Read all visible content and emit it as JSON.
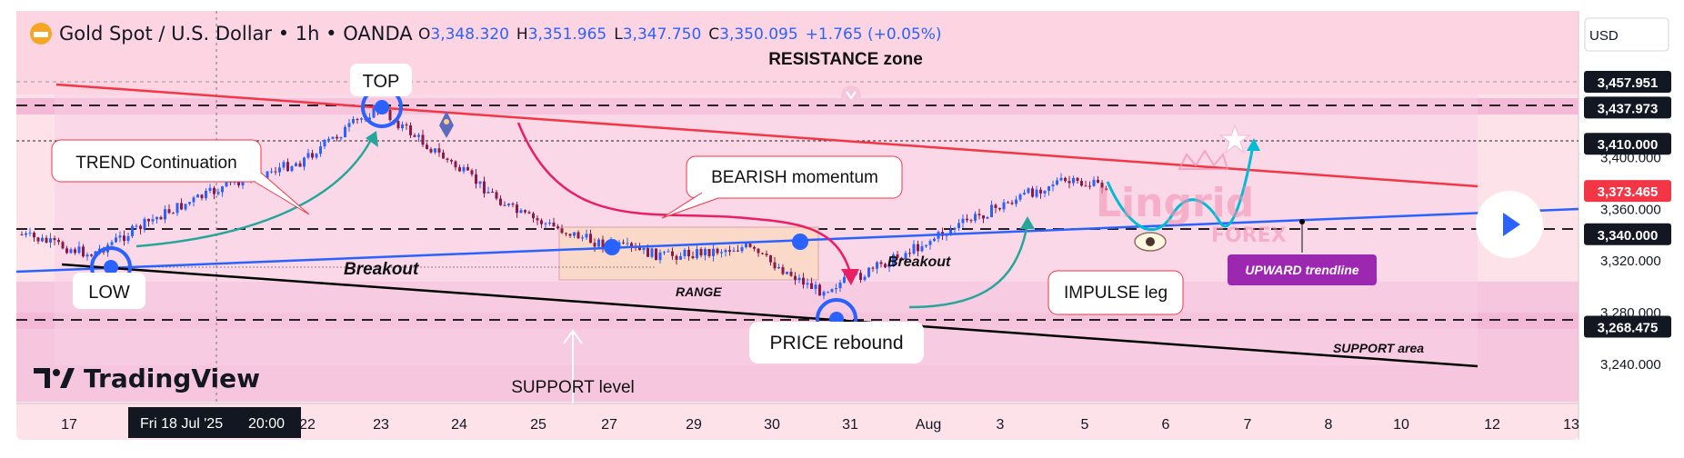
{
  "header": {
    "symbol": "Gold Spot / U.S. Dollar",
    "interval": "1h",
    "broker": "OANDA",
    "o_label": "O",
    "o": "3,348.320",
    "h_label": "H",
    "h": "3,351.965",
    "l_label": "L",
    "l": "3,347.750",
    "c_label": "C",
    "c": "3,350.095",
    "change": "+1.765 (+0.05%)"
  },
  "currency_label": "USD",
  "branding": {
    "tradingview": "TradingView",
    "watermark_top": "Lingrid",
    "watermark_bottom": "FOREX"
  },
  "colors": {
    "background": "#fde2ea",
    "pink_band": "#f3b9d6",
    "resistance_line": "#f23645",
    "trendline_blue": "#2962ff",
    "support_line": "#000000",
    "candle_up": "#2962ff",
    "candle_down": "#8b1a4a",
    "bearish_curve": "#e91e63",
    "green_arrow": "#26a69a",
    "cyan_projection": "#00bcd4",
    "last_price_tag": "#f23645",
    "trendline_label_bg": "#9c27b0"
  },
  "annotations": {
    "top": "TOP",
    "low": "LOW",
    "resistance_zone": "RESISTANCE zone",
    "trend_continuation": "TREND Continuation",
    "bearish_momentum": "BEARISH momentum",
    "breakout_left": "Breakout",
    "breakout_right": "Breakout",
    "range": "RANGE",
    "impulse_leg": "IMPULSE leg",
    "price_rebound": "PRICE rebound",
    "support_level": "SUPPORT level",
    "support_area": "SUPPORT area",
    "upward_trendline": "UPWARD trendline"
  },
  "crosshair_date": "Fri 18 Jul '25",
  "crosshair_time": "20:00",
  "chart_data": {
    "type": "candlestick",
    "symbol": "XAUUSD",
    "timeframe": "1h",
    "x_ticks": [
      "17",
      "22",
      "23",
      "24",
      "25",
      "27",
      "29",
      "30",
      "31",
      "Aug",
      "3",
      "5",
      "6",
      "7",
      "8",
      "10",
      "12",
      "13"
    ],
    "y_ticks": [
      "3,240.000",
      "3,280.000",
      "3,320.000",
      "3,360.000",
      "3,400.000"
    ],
    "ylim": [
      3220,
      3470
    ],
    "price_tags": [
      {
        "label": "3,457.951",
        "value": 3457.951,
        "kind": "level"
      },
      {
        "label": "3,437.973",
        "value": 3437.973,
        "kind": "level"
      },
      {
        "label": "3,410.000",
        "value": 3410.0,
        "kind": "level"
      },
      {
        "label": "3,373.465",
        "value": 3373.465,
        "kind": "last"
      },
      {
        "label": "3,340.000",
        "value": 3340.0,
        "kind": "level"
      },
      {
        "label": "3,268.475",
        "value": 3268.475,
        "kind": "level"
      }
    ],
    "resistance_zone": [
      3430,
      3446
    ],
    "support_zone": [
      3262,
      3276
    ],
    "range_box": {
      "from": "Jul 25",
      "to": "Jul 30",
      "low": 3300,
      "high": 3344
    },
    "price_path": [
      [
        "Jul 16",
        3335
      ],
      [
        "Jul 17",
        3318
      ],
      [
        "Jul 18",
        3355
      ],
      [
        "Jul 21",
        3385
      ],
      [
        "Jul 22",
        3398
      ],
      [
        "Jul 23",
        3432
      ],
      [
        "Jul 24",
        3370
      ],
      [
        "Jul 25",
        3340
      ],
      [
        "Jul 28",
        3320
      ],
      [
        "Jul 29",
        3325
      ],
      [
        "Jul 30",
        3300
      ],
      [
        "Jul 31",
        3290
      ],
      [
        "Aug 1",
        3300
      ],
      [
        "Aug 2",
        3340
      ],
      [
        "Aug 4",
        3365
      ],
      [
        "Aug 5",
        3368
      ]
    ],
    "projection_path": [
      [
        "Aug 5",
        3370
      ],
      [
        "Aug 6",
        3340
      ],
      [
        "Aug 6b",
        3365
      ],
      [
        "Aug 7",
        3340
      ],
      [
        "Aug 7b",
        3410
      ]
    ],
    "grid": false
  }
}
